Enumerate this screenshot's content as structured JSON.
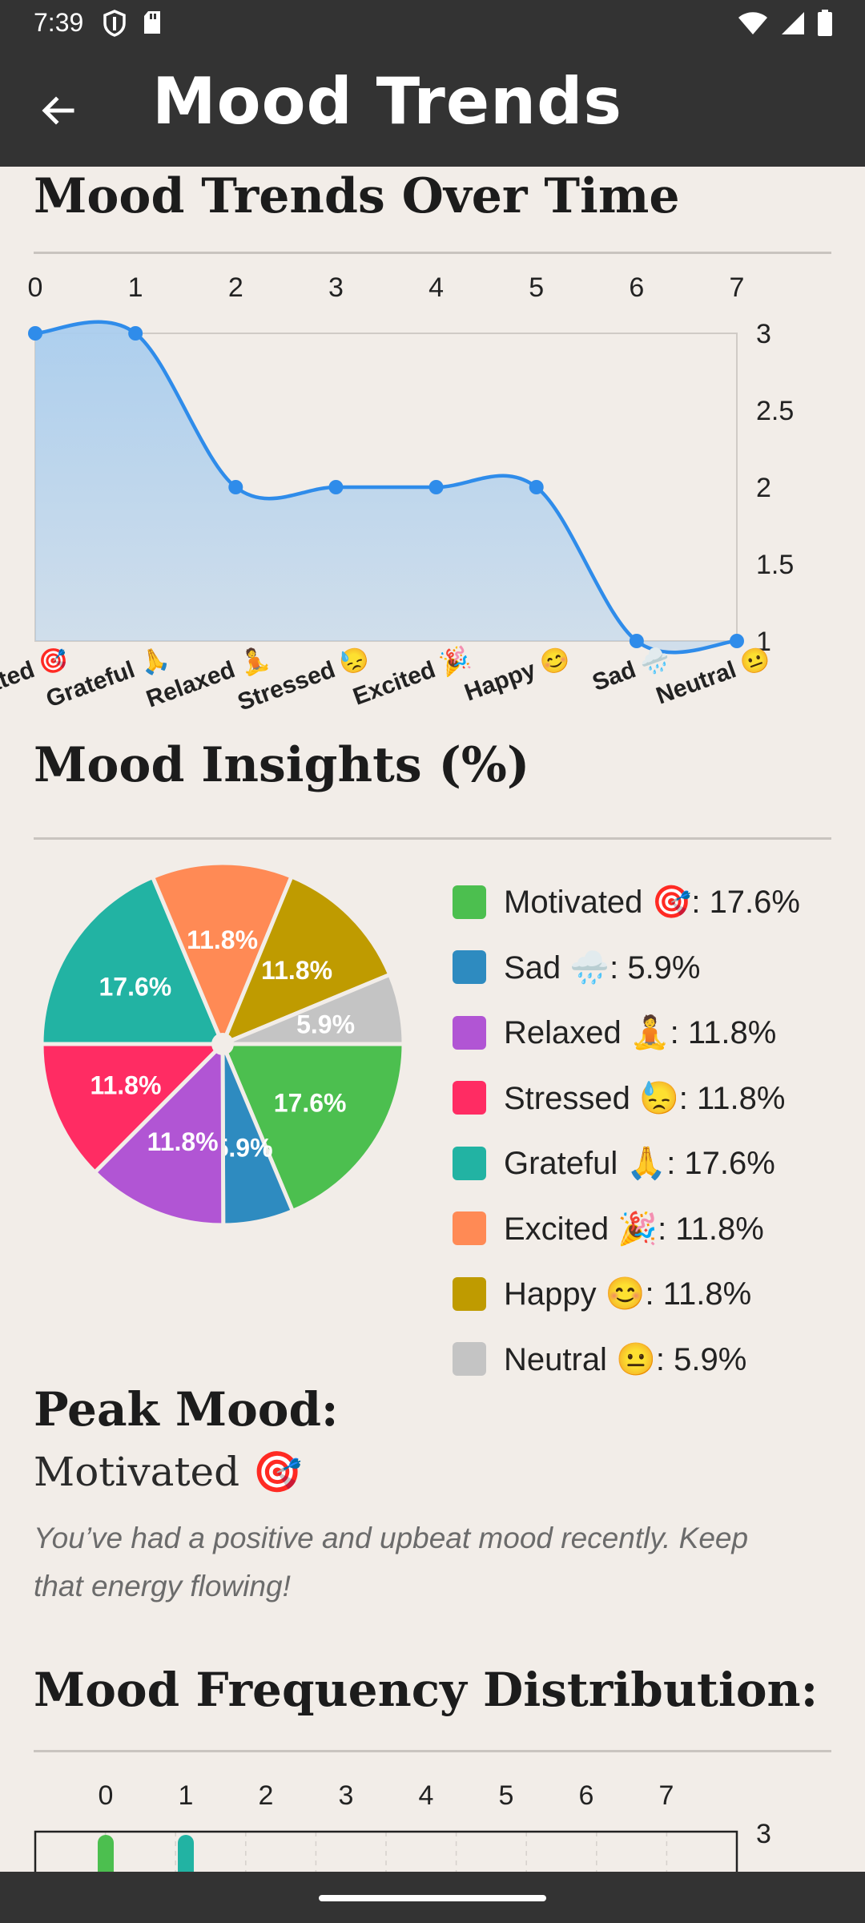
{
  "status_bar": {
    "time": "7:39"
  },
  "appbar": {
    "title": "Mood Trends"
  },
  "sections": {
    "trends_title": "Mood Trends Over Time",
    "insights_title": "Mood Insights (%)",
    "peak_title": "Peak Mood:",
    "peak_value": "Motivated 🎯",
    "insight_text": "You’ve had a positive and upbeat mood recently. Keep that energy flowing!",
    "distribution_title": "Mood Frequency Distribution:"
  },
  "chart_data": [
    {
      "type": "area",
      "x": [
        0,
        1,
        2,
        3,
        4,
        5,
        6,
        7
      ],
      "x_ticks": [
        "0",
        "1",
        "2",
        "3",
        "4",
        "5",
        "6",
        "7"
      ],
      "categories": [
        "Motivated 🎯",
        "Grateful 🙏",
        "Relaxed 🧘",
        "Stressed 😓",
        "Excited 🎉",
        "Happy 😊",
        "Sad 🌧️",
        "Neutral 😐"
      ],
      "values": [
        3,
        3,
        2,
        2,
        2,
        2,
        1,
        1
      ],
      "y_ticks": [
        "3",
        "2.5",
        "2",
        "1.5",
        "1"
      ],
      "ylim": [
        1,
        3
      ],
      "y_axis_position": "right",
      "x_axis_position": "top",
      "smooth": true,
      "line_color": "#2f8cea",
      "fill_color": "#a9cdee"
    },
    {
      "type": "pie",
      "slices": [
        {
          "label": "Motivated 🎯",
          "value": 17.6,
          "text": "17.6%",
          "color": "#4cbf4f"
        },
        {
          "label": "Sad 🌧️",
          "value": 5.9,
          "text": "5.9%",
          "color": "#2e8bc0"
        },
        {
          "label": "Relaxed 🧘",
          "value": 11.8,
          "text": "11.8%",
          "color": "#b155d4"
        },
        {
          "label": "Stressed 😓",
          "value": 11.8,
          "text": "11.8%",
          "color": "#ff2c63"
        },
        {
          "label": "Grateful 🙏",
          "value": 17.6,
          "text": "17.6%",
          "color": "#22b3a3"
        },
        {
          "label": "Excited 🎉",
          "value": 11.8,
          "text": "11.8%",
          "color": "#ff8a55"
        },
        {
          "label": "Happy 😊",
          "value": 11.8,
          "text": "11.8%",
          "color": "#bf9b00"
        },
        {
          "label": "Neutral 😐",
          "value": 5.9,
          "text": "5.9%",
          "color": "#c4c4c4"
        }
      ]
    },
    {
      "type": "bar",
      "x_ticks": [
        "0",
        "1",
        "2",
        "3",
        "4",
        "5",
        "6",
        "7"
      ],
      "y_ticks": [
        "3"
      ],
      "bars": [
        {
          "x": 0,
          "color": "#4cbf4f"
        },
        {
          "x": 1,
          "color": "#22b3a3"
        }
      ],
      "partially_visible": true
    }
  ]
}
